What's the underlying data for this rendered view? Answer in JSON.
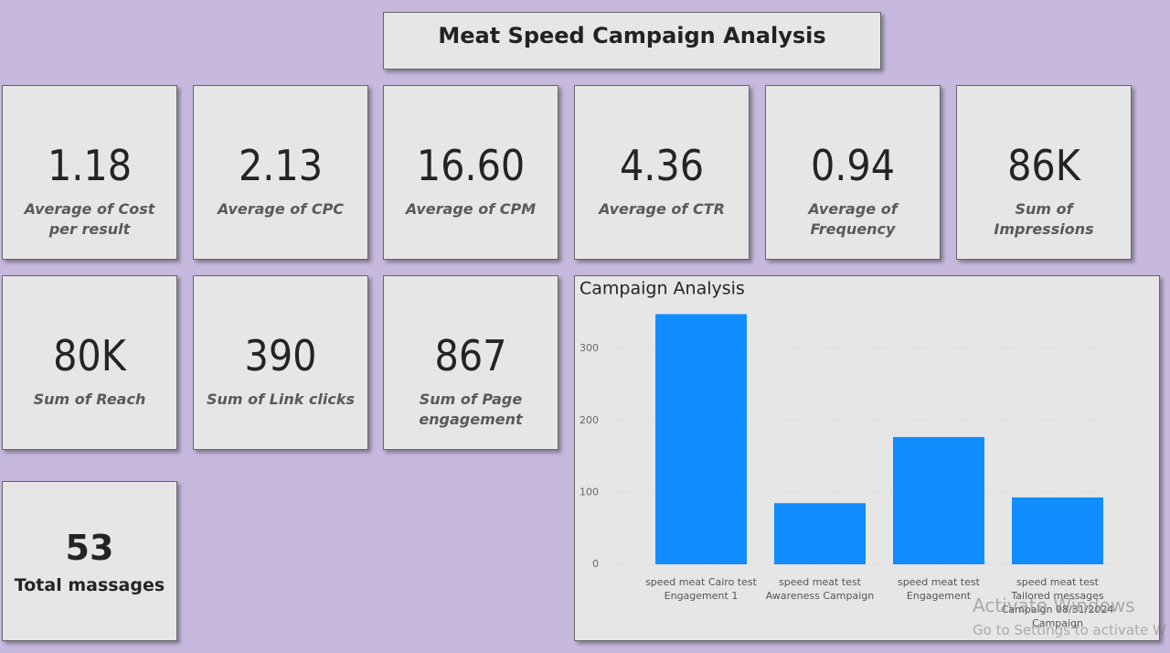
{
  "header": {
    "title": "Meat Speed Campaign Analysis"
  },
  "cards": [
    {
      "value": "1.18",
      "label": "Average of Cost per result"
    },
    {
      "value": "2.13",
      "label": "Average of CPC"
    },
    {
      "value": "16.60",
      "label": "Average of CPM"
    },
    {
      "value": "4.36",
      "label": "Average of CTR"
    },
    {
      "value": "0.94",
      "label": "Average of Frequency"
    },
    {
      "value": "86K",
      "label": "Sum of Impressions"
    },
    {
      "value": "80K",
      "label": "Sum of Reach"
    },
    {
      "value": "390",
      "label": "Sum of Link clicks"
    },
    {
      "value": "867",
      "label": "Sum of Page engagement"
    }
  ],
  "total_card": {
    "value": "53",
    "label": "Total massages"
  },
  "chart_data": {
    "type": "bar",
    "title": "Campaign Analysis",
    "categories": [
      "speed meat Cairo test Engagement 1",
      "speed meat test Awareness Campaign",
      "speed meat test Engagement",
      "speed meat test Tailored messages Campaign 08/31/2024 Campaign"
    ],
    "values": [
      348,
      85,
      177,
      93
    ],
    "color": "#118dff",
    "ylim": [
      0,
      360
    ],
    "yticks": [
      0,
      100,
      200,
      300
    ],
    "grid": true
  },
  "watermark": {
    "line1": "Activate Windows",
    "line2": "Go to Settings to activate W"
  }
}
